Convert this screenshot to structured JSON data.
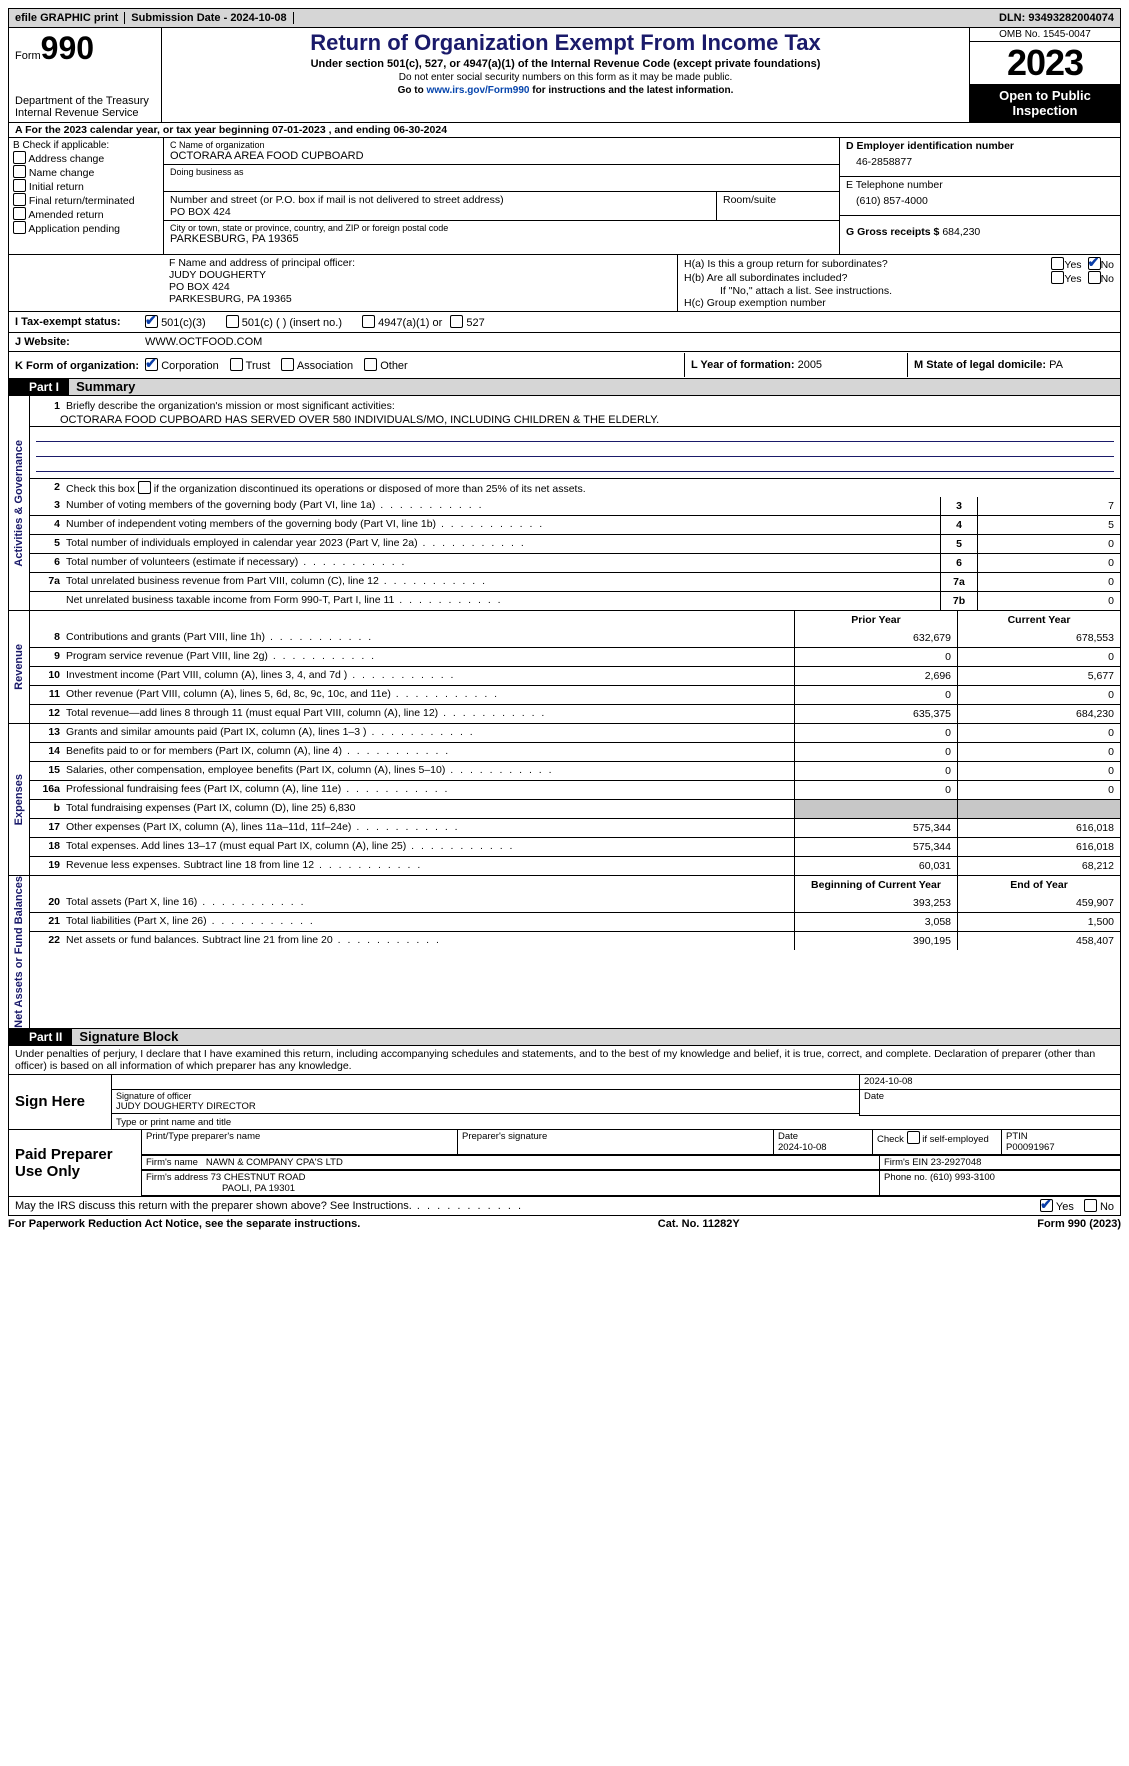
{
  "topbar": {
    "efile": "efile GRAPHIC print",
    "submission": "Submission Date - 2024-10-08",
    "dln": "DLN: 93493282004074"
  },
  "header": {
    "form_label": "Form",
    "form_no": "990",
    "dept": "Department of the Treasury",
    "irs": "Internal Revenue Service",
    "title": "Return of Organization Exempt From Income Tax",
    "sub": "Under section 501(c), 527, or 4947(a)(1) of the Internal Revenue Code (except private foundations)",
    "warn": "Do not enter social security numbers on this form as it may be made public.",
    "goto_pre": "Go to ",
    "goto_link": "www.irs.gov/Form990",
    "goto_post": " for instructions and the latest information.",
    "omb": "OMB No. 1545-0047",
    "year": "2023",
    "inspect": "Open to Public Inspection"
  },
  "lineA": "A  For the 2023 calendar year, or tax year beginning 07-01-2023    , and ending 06-30-2024",
  "B": {
    "label": "B Check if applicable:",
    "items": [
      "Address change",
      "Name change",
      "Initial return",
      "Final return/terminated",
      "Amended return",
      "Application pending"
    ]
  },
  "C": {
    "name_lab": "C Name of organization",
    "name": "OCTORARA AREA FOOD CUPBOARD",
    "dba_lab": "Doing business as",
    "dba": "",
    "street_lab": "Number and street (or P.O. box if mail is not delivered to street address)",
    "street": "PO BOX 424",
    "room_lab": "Room/suite",
    "room": "",
    "city_lab": "City or town, state or province, country, and ZIP or foreign postal code",
    "city": "PARKESBURG, PA  19365"
  },
  "D": {
    "lab": "D Employer identification number",
    "val": "46-2858877"
  },
  "E": {
    "lab": "E Telephone number",
    "val": "(610) 857-4000"
  },
  "G": {
    "lab": "G Gross receipts $",
    "val": "684,230"
  },
  "F": {
    "lab": "F  Name and address of principal officer:",
    "name": "JUDY DOUGHERTY",
    "addr1": "PO BOX 424",
    "addr2": "PARKESBURG, PA  19365"
  },
  "H": {
    "a": "H(a)  Is this a group return for subordinates?",
    "b": "H(b)  Are all subordinates included?",
    "b_note": "If \"No,\" attach a list. See instructions.",
    "c": "H(c)  Group exemption number",
    "yes": "Yes",
    "no": "No"
  },
  "I": {
    "lab": "I    Tax-exempt status:",
    "c3": "501(c)(3)",
    "c": "501(c) (  ) (insert no.)",
    "a1": "4947(a)(1) or",
    "527": "527"
  },
  "J": {
    "lab": "J    Website:",
    "val": "WWW.OCTFOOD.COM"
  },
  "K": {
    "lab": "K Form of organization:",
    "corp": "Corporation",
    "trust": "Trust",
    "assoc": "Association",
    "other": "Other"
  },
  "L": {
    "lab": "L Year of formation:",
    "val": "2005"
  },
  "M": {
    "lab": "M State of legal domicile:",
    "val": "PA"
  },
  "part1": {
    "header": "Part I",
    "title": "Summary"
  },
  "summary": {
    "s1_lab": "Briefly describe the organization's mission or most significant activities:",
    "s1_val": "OCTORARA FOOD CUPBOARD HAS SERVED OVER 580 INDIVIDUALS/MO, INCLUDING CHILDREN & THE ELDERLY.",
    "s2": "Check this box      if the organization discontinued its operations or disposed of more than 25% of its net assets.",
    "rows_gov": [
      {
        "n": "3",
        "d": "Number of voting members of the governing body (Part VI, line 1a)",
        "box": "3",
        "v": "7"
      },
      {
        "n": "4",
        "d": "Number of independent voting members of the governing body (Part VI, line 1b)",
        "box": "4",
        "v": "5"
      },
      {
        "n": "5",
        "d": "Total number of individuals employed in calendar year 2023 (Part V, line 2a)",
        "box": "5",
        "v": "0"
      },
      {
        "n": "6",
        "d": "Total number of volunteers (estimate if necessary)",
        "box": "6",
        "v": "0"
      },
      {
        "n": "7a",
        "d": "Total unrelated business revenue from Part VIII, column (C), line 12",
        "box": "7a",
        "v": "0"
      },
      {
        "n": "",
        "d": "Net unrelated business taxable income from Form 990-T, Part I, line 11",
        "box": "7b",
        "v": "0"
      }
    ],
    "col_prior": "Prior Year",
    "col_current": "Current Year",
    "rows_rev": [
      {
        "n": "8",
        "d": "Contributions and grants (Part VIII, line 1h)",
        "p": "632,679",
        "c": "678,553"
      },
      {
        "n": "9",
        "d": "Program service revenue (Part VIII, line 2g)",
        "p": "0",
        "c": "0"
      },
      {
        "n": "10",
        "d": "Investment income (Part VIII, column (A), lines 3, 4, and 7d )",
        "p": "2,696",
        "c": "5,677"
      },
      {
        "n": "11",
        "d": "Other revenue (Part VIII, column (A), lines 5, 6d, 8c, 9c, 10c, and 11e)",
        "p": "0",
        "c": "0"
      },
      {
        "n": "12",
        "d": "Total revenue—add lines 8 through 11 (must equal Part VIII, column (A), line 12)",
        "p": "635,375",
        "c": "684,230"
      }
    ],
    "rows_exp": [
      {
        "n": "13",
        "d": "Grants and similar amounts paid (Part IX, column (A), lines 1–3 )",
        "p": "0",
        "c": "0"
      },
      {
        "n": "14",
        "d": "Benefits paid to or for members (Part IX, column (A), line 4)",
        "p": "0",
        "c": "0"
      },
      {
        "n": "15",
        "d": "Salaries, other compensation, employee benefits (Part IX, column (A), lines 5–10)",
        "p": "0",
        "c": "0"
      },
      {
        "n": "16a",
        "d": "Professional fundraising fees (Part IX, column (A), line 11e)",
        "p": "0",
        "c": "0"
      },
      {
        "n": "b",
        "d": "Total fundraising expenses (Part IX, column (D), line 25) 6,830",
        "p": "",
        "c": "",
        "grey": true
      },
      {
        "n": "17",
        "d": "Other expenses (Part IX, column (A), lines 11a–11d, 11f–24e)",
        "p": "575,344",
        "c": "616,018"
      },
      {
        "n": "18",
        "d": "Total expenses. Add lines 13–17 (must equal Part IX, column (A), line 25)",
        "p": "575,344",
        "c": "616,018"
      },
      {
        "n": "19",
        "d": "Revenue less expenses. Subtract line 18 from line 12",
        "p": "60,031",
        "c": "68,212"
      }
    ],
    "col_boy": "Beginning of Current Year",
    "col_eoy": "End of Year",
    "rows_net": [
      {
        "n": "20",
        "d": "Total assets (Part X, line 16)",
        "p": "393,253",
        "c": "459,907"
      },
      {
        "n": "21",
        "d": "Total liabilities (Part X, line 26)",
        "p": "3,058",
        "c": "1,500"
      },
      {
        "n": "22",
        "d": "Net assets or fund balances. Subtract line 21 from line 20",
        "p": "390,195",
        "c": "458,407"
      }
    ],
    "side_gov": "Activities & Governance",
    "side_rev": "Revenue",
    "side_exp": "Expenses",
    "side_net": "Net Assets or Fund Balances"
  },
  "part2": {
    "header": "Part II",
    "title": "Signature Block"
  },
  "perjury": "Under penalties of perjury, I declare that I have examined this return, including accompanying schedules and statements, and to the best of my knowledge and belief, it is true, correct, and complete. Declaration of preparer (other than officer) is based on all information of which preparer has any knowledge.",
  "sign": {
    "here": "Sign Here",
    "sig_lab": "Signature of officer",
    "date_lab": "Date",
    "date": "2024-10-08",
    "officer": "JUDY DOUGHERTY  DIRECTOR",
    "type_lab": "Type or print name and title"
  },
  "paid": {
    "label": "Paid Preparer Use Only",
    "name_lab": "Print/Type preparer's name",
    "sig_lab": "Preparer's signature",
    "date_lab": "Date",
    "date": "2024-10-08",
    "self_lab": "Check        if self-employed",
    "ptin_lab": "PTIN",
    "ptin": "P00091967",
    "firm_name_lab": "Firm's name",
    "firm_name": "NAWN & COMPANY CPA'S LTD",
    "firm_ein_lab": "Firm's EIN",
    "firm_ein": "23-2927048",
    "firm_addr_lab": "Firm's address",
    "firm_addr1": "73 CHESTNUT ROAD",
    "firm_addr2": "PAOLI, PA  19301",
    "phone_lab": "Phone no.",
    "phone": "(610) 993-3100"
  },
  "discuss": {
    "q": "May the IRS discuss this return with the preparer shown above? See Instructions.",
    "yes": "Yes",
    "no": "No"
  },
  "footer": {
    "l": "For Paperwork Reduction Act Notice, see the separate instructions.",
    "c": "Cat. No. 11282Y",
    "r": "Form 990 (2023)"
  }
}
